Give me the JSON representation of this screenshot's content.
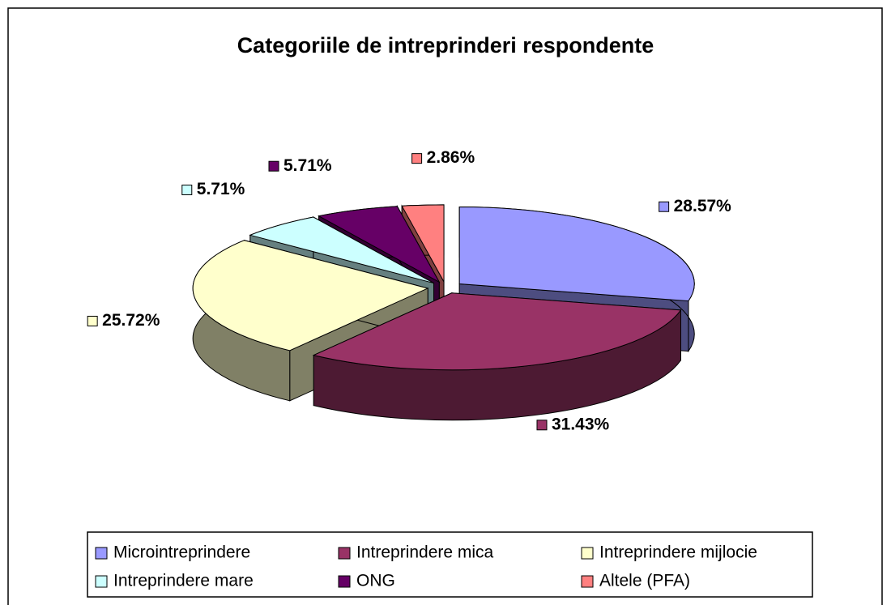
{
  "chart_data": {
    "type": "pie3d",
    "title": "Categoriile de intreprinderi respondente",
    "categories": [
      "Microintreprindere",
      "Intreprindere mica",
      "Intreprindere mijlocie",
      "Intreprindere mare",
      "ONG",
      "Altele (PFA)"
    ],
    "values": [
      28.57,
      31.43,
      25.72,
      5.71,
      5.71,
      2.86
    ],
    "value_labels": [
      "28.57%",
      "31.43%",
      "25.72%",
      "5.71%",
      "5.71%",
      "2.86%"
    ],
    "colors": [
      "#9999ff",
      "#993366",
      "#ffffcc",
      "#ccffff",
      "#660066",
      "#ff8080"
    ],
    "legend": "bottom"
  }
}
